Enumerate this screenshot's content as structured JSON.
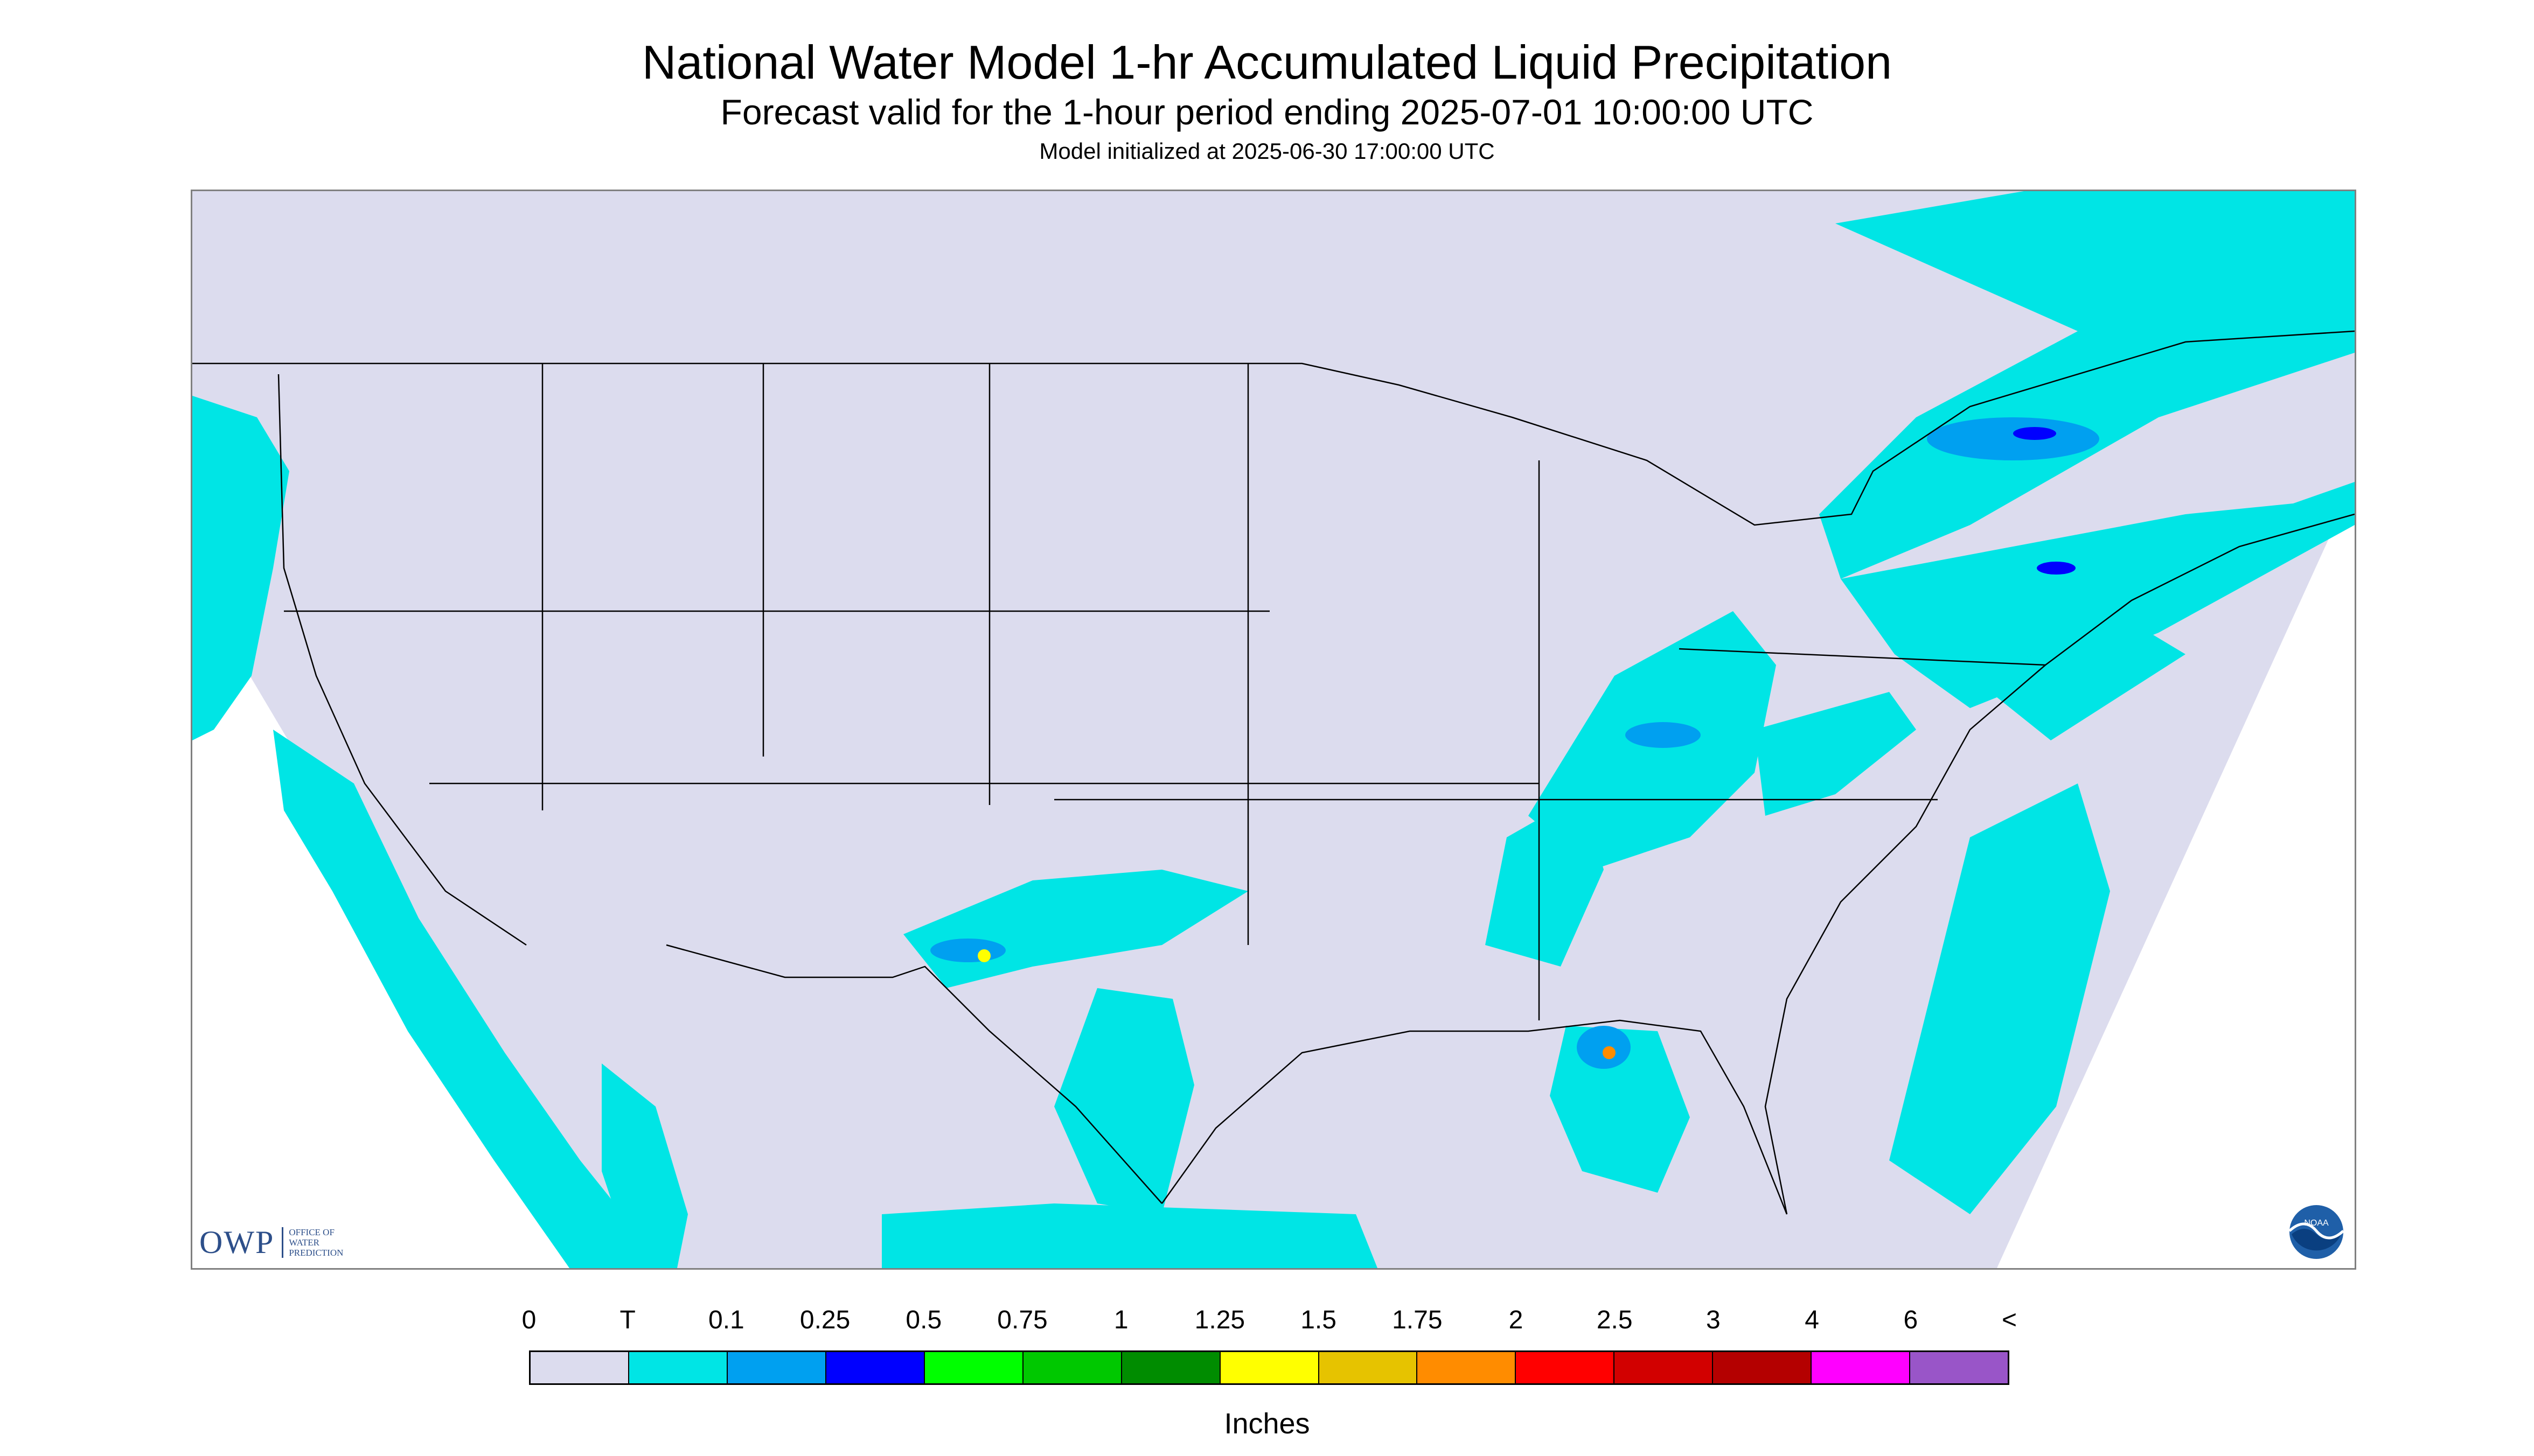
{
  "title": "National Water Model 1-hr Accumulated Liquid Precipitation",
  "subtitle": "Forecast valid for the 1-hour period ending 2025-07-01 10:00:00 UTC",
  "init_text": "Model initialized at 2025-06-30 17:00:00 UTC",
  "colors": {
    "map_background": "#dcdcee",
    "trace": "#00e5e5",
    "outside_domain": "#ffffff"
  },
  "legend": {
    "units": "Inches",
    "labels": [
      "0",
      "T",
      "0.1",
      "0.25",
      "0.5",
      "0.75",
      "1",
      "1.25",
      "1.5",
      "1.75",
      "2",
      "2.5",
      "3",
      "4",
      "6",
      "<"
    ],
    "colors": [
      "#dcdcee",
      "#00e5e5",
      "#00a0f0",
      "#0000ff",
      "#00ff00",
      "#00c800",
      "#008c00",
      "#ffff00",
      "#e6c300",
      "#ff8c00",
      "#ff0000",
      "#d20000",
      "#b40000",
      "#ff00ff",
      "#9955c8"
    ]
  },
  "logos": {
    "owp_text": "OWP",
    "owp_sub": [
      "OFFICE OF",
      "WATER",
      "PREDICTION"
    ],
    "noaa_text": "NOAA"
  }
}
